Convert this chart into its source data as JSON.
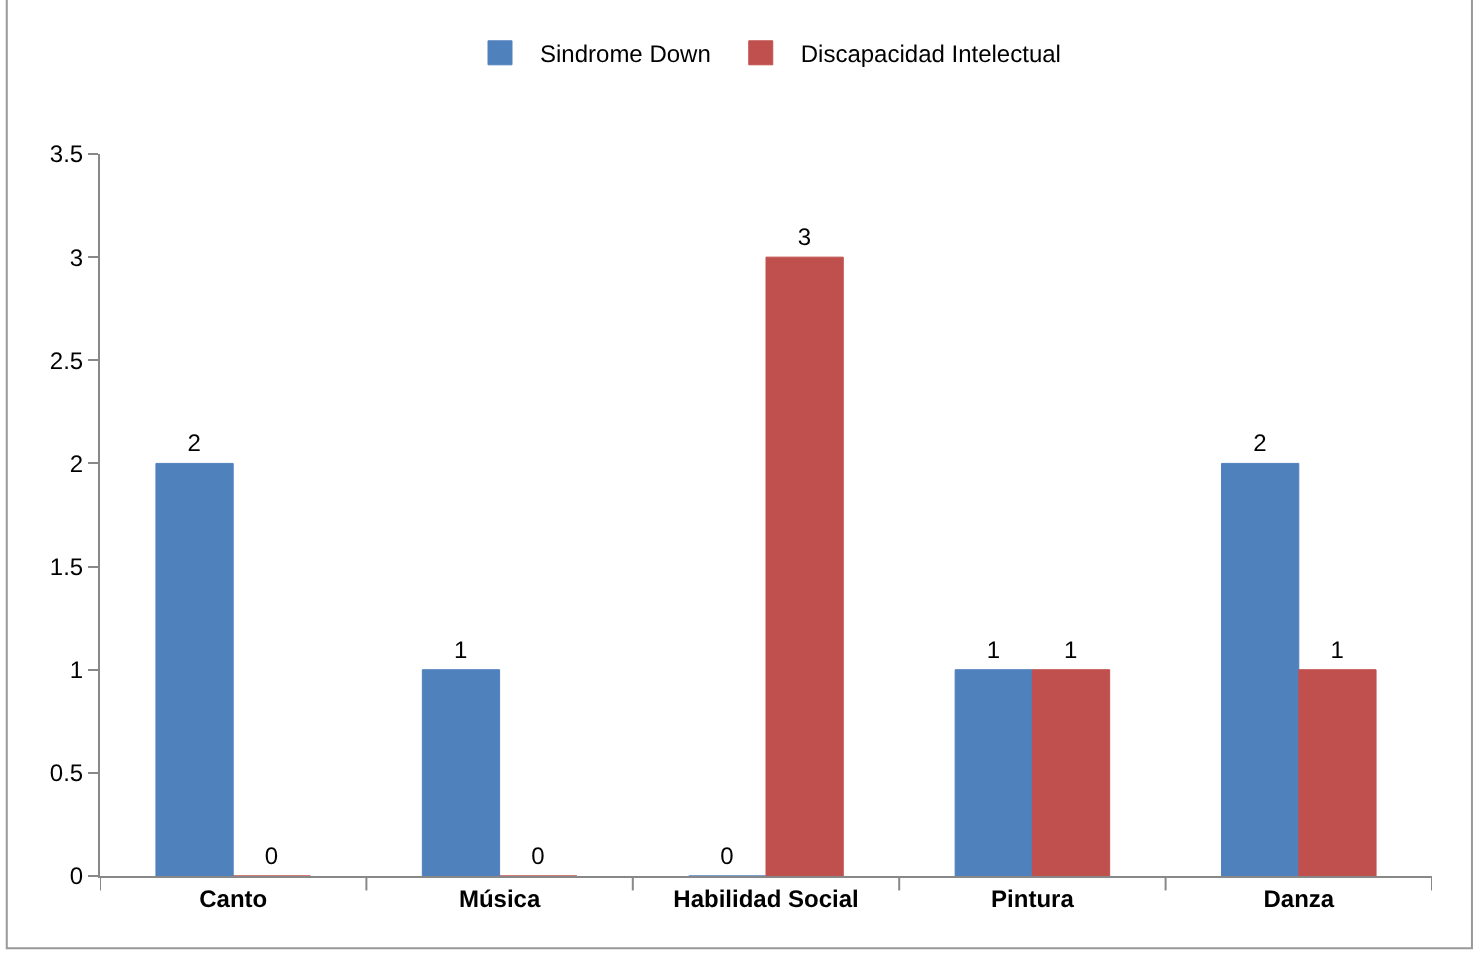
{
  "chart_data": {
    "type": "bar",
    "categories": [
      "Canto",
      "Música",
      "Habilidad Social",
      "Pintura",
      "Danza"
    ],
    "series": [
      {
        "name": "Sindrome Down",
        "color": "#4f81bd",
        "values": [
          2,
          1,
          0,
          1,
          2
        ]
      },
      {
        "name": "Discapacidad Intelectual",
        "color": "#c0504d",
        "values": [
          0,
          0,
          3,
          1,
          1
        ]
      }
    ],
    "ylim": [
      0,
      3.5
    ],
    "yticks": [
      0,
      0.5,
      1,
      1.5,
      2,
      2.5,
      3,
      3.5
    ],
    "data_labels": true,
    "legend": "top"
  }
}
